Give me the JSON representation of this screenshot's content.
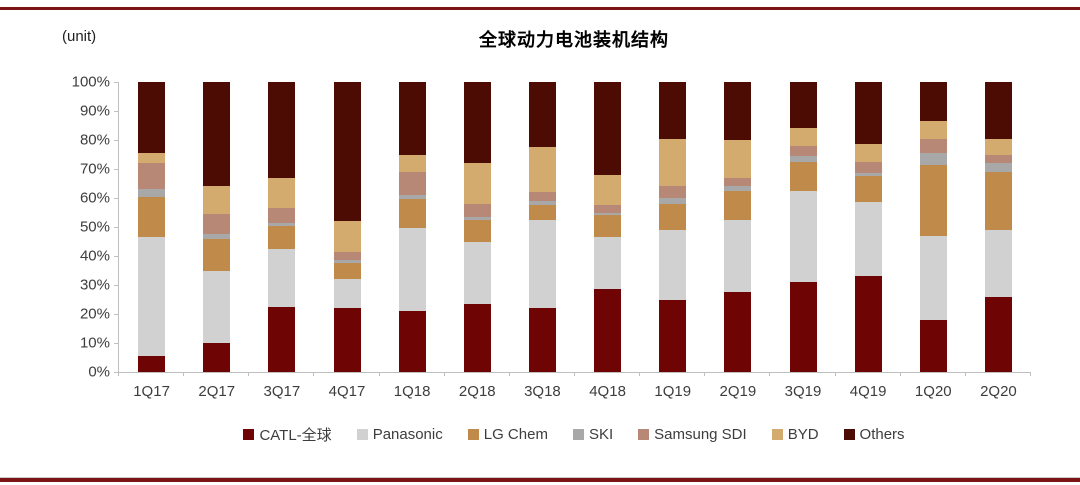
{
  "page": {
    "rule_color": "#7a1415",
    "unit_label": "(unit)"
  },
  "chart_data": {
    "type": "bar",
    "stacked": true,
    "title": "全球动力电池装机结构",
    "unit_label": "(unit)",
    "xlabel": "",
    "ylabel": "",
    "ylim": [
      0,
      100
    ],
    "grid": false,
    "legend_position": "bottom",
    "axis_color": "#bfbfbf",
    "y_ticks": [
      0,
      10,
      20,
      30,
      40,
      50,
      60,
      70,
      80,
      90,
      100
    ],
    "y_tick_labels": [
      "0%",
      "10%",
      "20%",
      "30%",
      "40%",
      "50%",
      "60%",
      "70%",
      "80%",
      "90%",
      "100%"
    ],
    "categories": [
      "1Q17",
      "2Q17",
      "3Q17",
      "4Q17",
      "1Q18",
      "2Q18",
      "3Q18",
      "4Q18",
      "1Q19",
      "2Q19",
      "3Q19",
      "4Q19",
      "1Q20",
      "2Q20"
    ],
    "series": [
      {
        "name": "CATL-全球",
        "color": "#6e0504",
        "values": [
          5.5,
          10,
          22.5,
          22,
          21,
          23.5,
          22,
          28.5,
          25,
          27.5,
          31,
          33,
          18,
          26
        ]
      },
      {
        "name": "Panasonic",
        "color": "#d1d1d1",
        "values": [
          41,
          25,
          20,
          10,
          28.5,
          21.5,
          30.5,
          18,
          24,
          25,
          31.5,
          25.5,
          29,
          23
        ]
      },
      {
        "name": "LG Chem",
        "color": "#c08b4a",
        "values": [
          14,
          11,
          8,
          5.5,
          10,
          7.5,
          5,
          7.5,
          9,
          10,
          10,
          9,
          24.5,
          20
        ]
      },
      {
        "name": "SKI",
        "color": "#a8a8a8",
        "values": [
          2.5,
          1.5,
          1,
          1,
          1.5,
          1,
          1.5,
          1,
          2,
          1.5,
          2,
          1,
          4,
          3
        ]
      },
      {
        "name": "Samsung SDI",
        "color": "#b78876",
        "values": [
          9,
          7,
          5,
          3,
          8,
          4.5,
          3,
          2.5,
          4,
          3,
          3.5,
          4,
          5,
          3
        ]
      },
      {
        "name": "BYD",
        "color": "#d3ab6f",
        "values": [
          3.5,
          9.5,
          10.5,
          10.5,
          6,
          14,
          15.5,
          10.5,
          16.5,
          13,
          6,
          6,
          6,
          5.5
        ]
      },
      {
        "name": "Others",
        "color": "#4c0b03",
        "values": [
          24.5,
          36,
          33,
          48,
          25,
          28,
          22.5,
          32,
          19.5,
          20,
          16,
          21.5,
          13.5,
          19.5
        ]
      }
    ]
  }
}
